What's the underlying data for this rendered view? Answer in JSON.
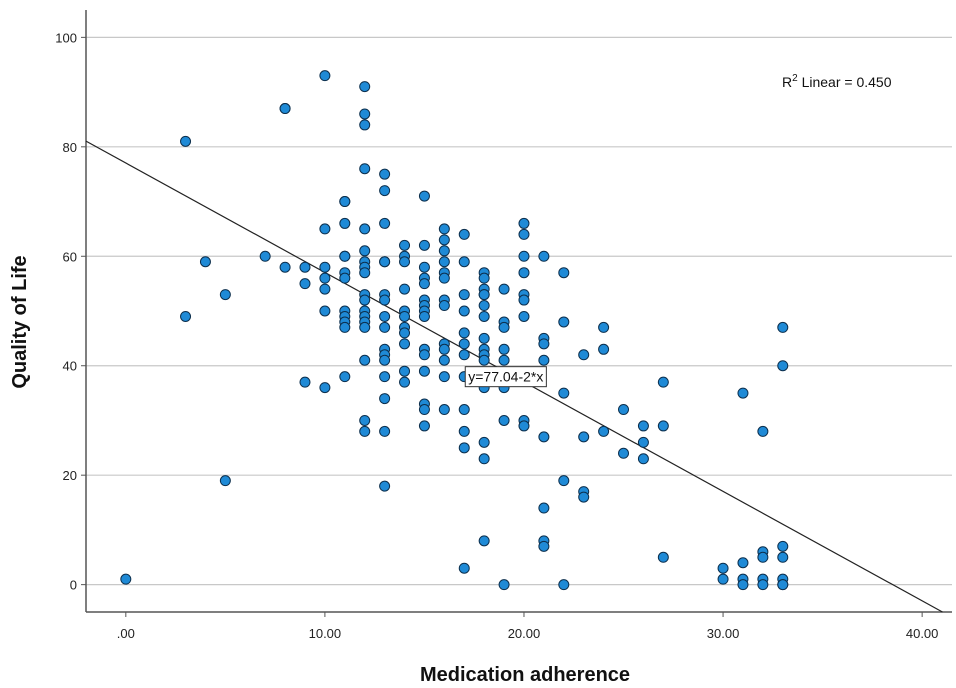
{
  "chart_data": {
    "type": "scatter",
    "xlabel": "Medication adherence",
    "ylabel": "Quality of Life",
    "xlim": [
      -2,
      41.5
    ],
    "ylim": [
      -5,
      105
    ],
    "x_ticks": [
      0,
      10,
      20,
      30,
      40
    ],
    "x_tick_labels": [
      ".00",
      "10.00",
      "20.00",
      "30.00",
      "40.00"
    ],
    "y_ticks": [
      0,
      20,
      40,
      60,
      80,
      100
    ],
    "y_tick_labels": [
      "0",
      "20",
      "40",
      "60",
      "80",
      "100"
    ],
    "grid": "horizontal",
    "fit_line": {
      "intercept": 77.04,
      "slope": -2,
      "label": "y=77.04-2*x",
      "label_at": [
        17,
        38
      ]
    },
    "r2_label": {
      "prefix": "R",
      "sup": "2",
      "text": " Linear = 0.450"
    },
    "colors": {
      "point_fill": "#1f8ad6",
      "point_stroke": "#0c2f4d",
      "grid": "#c8c8c8",
      "axis": "#555555"
    },
    "points": [
      [
        0,
        1
      ],
      [
        3,
        81
      ],
      [
        3,
        49
      ],
      [
        4,
        59
      ],
      [
        5,
        53
      ],
      [
        5,
        19
      ],
      [
        7,
        60
      ],
      [
        8,
        87
      ],
      [
        8,
        87
      ],
      [
        8,
        58
      ],
      [
        9,
        58
      ],
      [
        9,
        55
      ],
      [
        9,
        37
      ],
      [
        10,
        93
      ],
      [
        10,
        65
      ],
      [
        10,
        58
      ],
      [
        10,
        56
      ],
      [
        10,
        54
      ],
      [
        10,
        50
      ],
      [
        10,
        36
      ],
      [
        11,
        70
      ],
      [
        11,
        70
      ],
      [
        11,
        66
      ],
      [
        11,
        60
      ],
      [
        11,
        60
      ],
      [
        11,
        57
      ],
      [
        11,
        56
      ],
      [
        11,
        50
      ],
      [
        11,
        49
      ],
      [
        11,
        48
      ],
      [
        11,
        47
      ],
      [
        11,
        38
      ],
      [
        12,
        91
      ],
      [
        12,
        86
      ],
      [
        12,
        84
      ],
      [
        12,
        76
      ],
      [
        12,
        65
      ],
      [
        12,
        61
      ],
      [
        12,
        59
      ],
      [
        12,
        58
      ],
      [
        12,
        57
      ],
      [
        12,
        53
      ],
      [
        12,
        52
      ],
      [
        12,
        50
      ],
      [
        12,
        49
      ],
      [
        12,
        48
      ],
      [
        12,
        47
      ],
      [
        12,
        41
      ],
      [
        12,
        30
      ],
      [
        12,
        28
      ],
      [
        13,
        75
      ],
      [
        13,
        72
      ],
      [
        13,
        66
      ],
      [
        13,
        59
      ],
      [
        13,
        59
      ],
      [
        13,
        53
      ],
      [
        13,
        52
      ],
      [
        13,
        49
      ],
      [
        13,
        47
      ],
      [
        13,
        43
      ],
      [
        13,
        42
      ],
      [
        13,
        41
      ],
      [
        13,
        38
      ],
      [
        13,
        34
      ],
      [
        13,
        28
      ],
      [
        13,
        18
      ],
      [
        14,
        62
      ],
      [
        14,
        60
      ],
      [
        14,
        59
      ],
      [
        14,
        54
      ],
      [
        14,
        50
      ],
      [
        14,
        49
      ],
      [
        14,
        47
      ],
      [
        14,
        46
      ],
      [
        14,
        44
      ],
      [
        14,
        39
      ],
      [
        14,
        37
      ],
      [
        15,
        71
      ],
      [
        15,
        62
      ],
      [
        15,
        58
      ],
      [
        15,
        56
      ],
      [
        15,
        55
      ],
      [
        15,
        52
      ],
      [
        15,
        51
      ],
      [
        15,
        50
      ],
      [
        15,
        49
      ],
      [
        15,
        43
      ],
      [
        15,
        42
      ],
      [
        15,
        39
      ],
      [
        15,
        33
      ],
      [
        15,
        32
      ],
      [
        15,
        29
      ],
      [
        16,
        65
      ],
      [
        16,
        63
      ],
      [
        16,
        61
      ],
      [
        16,
        59
      ],
      [
        16,
        57
      ],
      [
        16,
        56
      ],
      [
        16,
        52
      ],
      [
        16,
        51
      ],
      [
        16,
        44
      ],
      [
        16,
        43
      ],
      [
        16,
        41
      ],
      [
        16,
        38
      ],
      [
        16,
        32
      ],
      [
        17,
        64
      ],
      [
        17,
        59
      ],
      [
        17,
        53
      ],
      [
        17,
        50
      ],
      [
        17,
        46
      ],
      [
        17,
        44
      ],
      [
        17,
        42
      ],
      [
        17,
        38
      ],
      [
        17,
        32
      ],
      [
        17,
        28
      ],
      [
        17,
        25
      ],
      [
        17,
        3
      ],
      [
        18,
        57
      ],
      [
        18,
        56
      ],
      [
        18,
        54
      ],
      [
        18,
        53
      ],
      [
        18,
        53
      ],
      [
        18,
        51
      ],
      [
        18,
        49
      ],
      [
        18,
        45
      ],
      [
        18,
        43
      ],
      [
        18,
        42
      ],
      [
        18,
        41
      ],
      [
        18,
        38
      ],
      [
        18,
        36
      ],
      [
        18,
        26
      ],
      [
        18,
        23
      ],
      [
        18,
        8
      ],
      [
        19,
        54
      ],
      [
        19,
        48
      ],
      [
        19,
        47
      ],
      [
        19,
        43
      ],
      [
        19,
        41
      ],
      [
        19,
        36
      ],
      [
        19,
        30
      ],
      [
        19,
        0
      ],
      [
        20,
        66
      ],
      [
        20,
        64
      ],
      [
        20,
        60
      ],
      [
        20,
        57
      ],
      [
        20,
        53
      ],
      [
        20,
        52
      ],
      [
        20,
        49
      ],
      [
        20,
        30
      ],
      [
        20,
        29
      ],
      [
        21,
        60
      ],
      [
        21,
        45
      ],
      [
        21,
        44
      ],
      [
        21,
        41
      ],
      [
        21,
        27
      ],
      [
        21,
        14
      ],
      [
        21,
        8
      ],
      [
        21,
        7
      ],
      [
        22,
        57
      ],
      [
        22,
        48
      ],
      [
        22,
        35
      ],
      [
        22,
        19
      ],
      [
        22,
        0
      ],
      [
        23,
        42
      ],
      [
        23,
        27
      ],
      [
        23,
        17
      ],
      [
        23,
        16
      ],
      [
        24,
        47
      ],
      [
        24,
        43
      ],
      [
        24,
        28
      ],
      [
        25,
        32
      ],
      [
        25,
        24
      ],
      [
        26,
        29
      ],
      [
        26,
        26
      ],
      [
        26,
        23
      ],
      [
        27,
        37
      ],
      [
        27,
        29
      ],
      [
        27,
        5
      ],
      [
        30,
        3
      ],
      [
        30,
        1
      ],
      [
        31,
        35
      ],
      [
        31,
        4
      ],
      [
        31,
        1
      ],
      [
        31,
        0
      ],
      [
        32,
        28
      ],
      [
        32,
        6
      ],
      [
        32,
        5
      ],
      [
        32,
        1
      ],
      [
        32,
        0
      ],
      [
        33,
        47
      ],
      [
        33,
        40
      ],
      [
        33,
        7
      ],
      [
        33,
        5
      ],
      [
        33,
        1
      ],
      [
        33,
        0
      ],
      [
        33,
        0
      ]
    ]
  }
}
